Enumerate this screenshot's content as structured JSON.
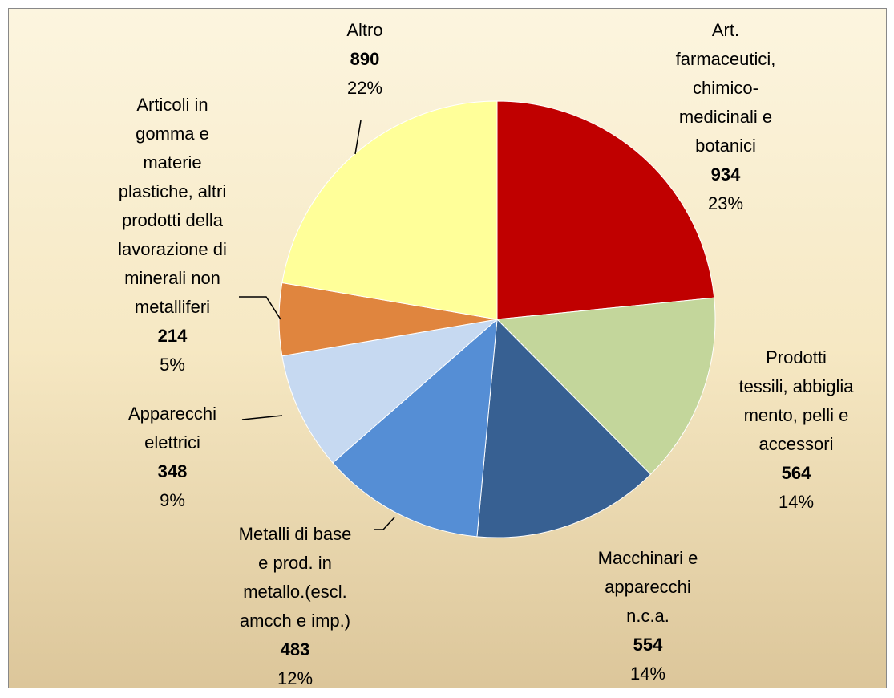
{
  "chart_data": {
    "type": "pie",
    "categories": [
      "Art.\nfarmaceutici,\nchimico-\nmedicinali e\nbotanici",
      "Prodotti\ntessili, abbiglia\nmento, pelli e\naccessori",
      "Macchinari e\napparecchi\nn.c.a.",
      "Metalli di base\ne prod. in\nmetallo.(escl.\namcch e imp.)",
      "Apparecchi\nelettrici",
      "Articoli in\ngomma e\nmaterie\nplastiche, altri\nprodotti della\nlavorazione di\nminerali non\nmetalliferi",
      "Altro"
    ],
    "values": [
      934,
      564,
      554,
      483,
      348,
      214,
      890
    ],
    "percentages": [
      {
        "value": 23,
        "label": "23%"
      },
      {
        "value": 14,
        "label": "14%"
      },
      {
        "value": 14,
        "label": "14%"
      },
      {
        "value": 12,
        "label": "12%"
      },
      {
        "value": 9,
        "label": "9%"
      },
      {
        "value": 5,
        "label": "5%"
      },
      {
        "value": 22,
        "label": "22%"
      }
    ],
    "colors": [
      "#c00000",
      "#c3d69b",
      "#376092",
      "#558ed5",
      "#c6d9f1",
      "#e0853e",
      "#ffff99"
    ]
  }
}
